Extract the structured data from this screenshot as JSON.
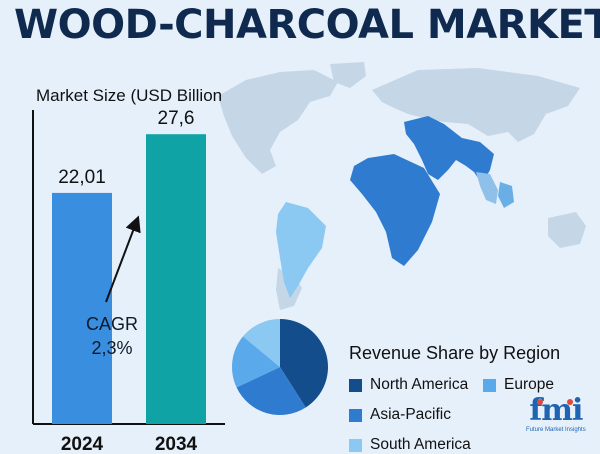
{
  "title": "WOOD-CHARCOAL MARKET",
  "colors": {
    "background": "#e6f0fa",
    "bar_2024": "#3a8ee0",
    "bar_2034": "#10a3a6",
    "north_america": "#134d8b",
    "asia_pacific": "#2f7bd0",
    "europe": "#5aa9ea",
    "south_america": "#8bc8f2"
  },
  "chart_data": [
    {
      "type": "bar",
      "ylabel": "Market Size (USD Billion",
      "categories": [
        "2024",
        "2034"
      ],
      "values": [
        22.01,
        27.6
      ],
      "value_labels": [
        "22,01",
        "27,6"
      ],
      "annotation": {
        "label": "CAGR",
        "value": "2,3%"
      }
    },
    {
      "type": "pie",
      "title": "Revenue Share by Region",
      "categories": [
        "North America",
        "Europe",
        "Asia-Pacific",
        "South America"
      ],
      "values": [
        41,
        18,
        27,
        14
      ],
      "legend_placement": "right"
    }
  ],
  "logo": {
    "text": "fmi",
    "subtitle": "Future Market Insights",
    "icon": "fmi-logo"
  }
}
